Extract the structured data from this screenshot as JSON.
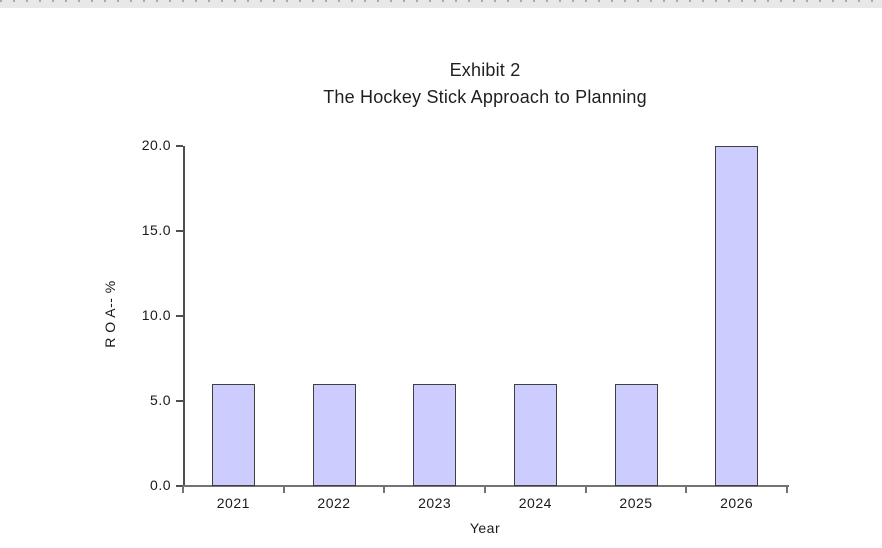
{
  "window": {
    "top_edge_color": "#e8e8e8",
    "top_edge_dash_color": "#a9a9a9"
  },
  "chart_data": {
    "type": "bar",
    "title": "Exhibit 2",
    "subtitle": "The Hockey Stick Approach to Planning",
    "categories": [
      "2021",
      "2022",
      "2023",
      "2024",
      "2025",
      "2026"
    ],
    "values": [
      6.0,
      6.0,
      6.0,
      6.0,
      6.0,
      20.0
    ],
    "xlabel": "Year",
    "ylabel": "R O A-- %",
    "ylim": [
      0,
      20
    ],
    "yticks": [
      0,
      5,
      10,
      15,
      20
    ],
    "ytick_labels": [
      "0.0",
      "5.0",
      "10.0",
      "15.0",
      "20.0"
    ],
    "grid": false,
    "legend": "none",
    "bar_fill": "#ccccff",
    "bar_border": "#3f3f3f",
    "axis_color": "#4f4f4f"
  }
}
